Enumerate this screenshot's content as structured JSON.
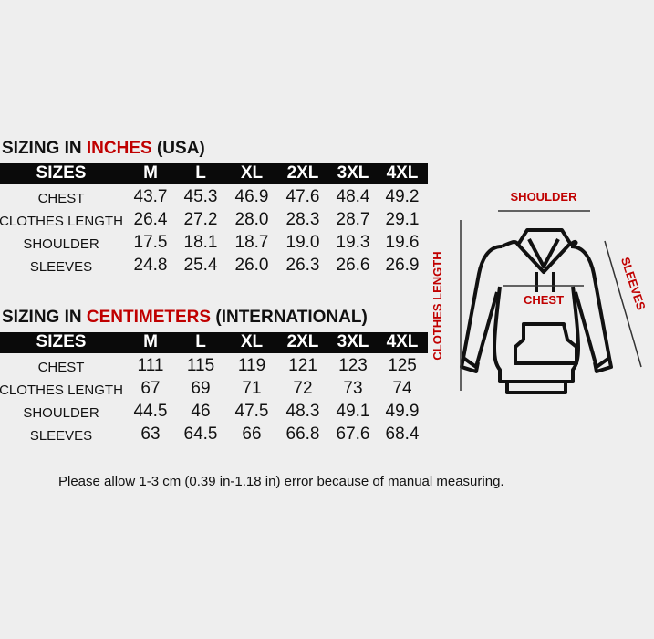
{
  "colors": {
    "accent": "#c00000",
    "header_bg": "#0a0a0a",
    "background": "#eeeeee"
  },
  "inches": {
    "title_prefix": "SIZING IN ",
    "title_accent": "INCHES",
    "title_suffix": " (USA)",
    "headers": [
      "SIZES",
      "M",
      "L",
      "XL",
      "2XL",
      "3XL",
      "4XL"
    ],
    "rows": [
      {
        "label": "CHEST",
        "values": [
          "43.7",
          "45.3",
          "46.9",
          "47.6",
          "48.4",
          "49.2"
        ]
      },
      {
        "label": "CLOTHES LENGTH",
        "values": [
          "26.4",
          "27.2",
          "28.0",
          "28.3",
          "28.7",
          "29.1"
        ]
      },
      {
        "label": "SHOULDER",
        "values": [
          "17.5",
          "18.1",
          "18.7",
          "19.0",
          "19.3",
          "19.6"
        ]
      },
      {
        "label": "SLEEVES",
        "values": [
          "24.8",
          "25.4",
          "26.0",
          "26.3",
          "26.6",
          "26.9"
        ]
      }
    ]
  },
  "centimeters": {
    "title_prefix": "SIZING IN ",
    "title_accent": "CENTIMETERS",
    "title_suffix": " (INTERNATIONAL)",
    "headers": [
      "SIZES",
      "M",
      "L",
      "XL",
      "2XL",
      "3XL",
      "4XL"
    ],
    "rows": [
      {
        "label": "CHEST",
        "values": [
          "111",
          "115",
          "119",
          "121",
          "123",
          "125"
        ]
      },
      {
        "label": "CLOTHES LENGTH",
        "values": [
          "67",
          "69",
          "71",
          "72",
          "73",
          "74"
        ]
      },
      {
        "label": "SHOULDER",
        "values": [
          "44.5",
          "46",
          "47.5",
          "48.3",
          "49.1",
          "49.9"
        ]
      },
      {
        "label": "SLEEVES",
        "values": [
          "63",
          "64.5",
          "66",
          "66.8",
          "67.6",
          "68.4"
        ]
      }
    ]
  },
  "diagram": {
    "shoulder": "SHOULDER",
    "chest": "CHEST",
    "clothes_length": "CLOTHES LENGTH",
    "sleeves": "SLEEVES"
  },
  "note": "Please allow 1-3 cm (0.39 in-1.18 in) error because of manual measuring."
}
